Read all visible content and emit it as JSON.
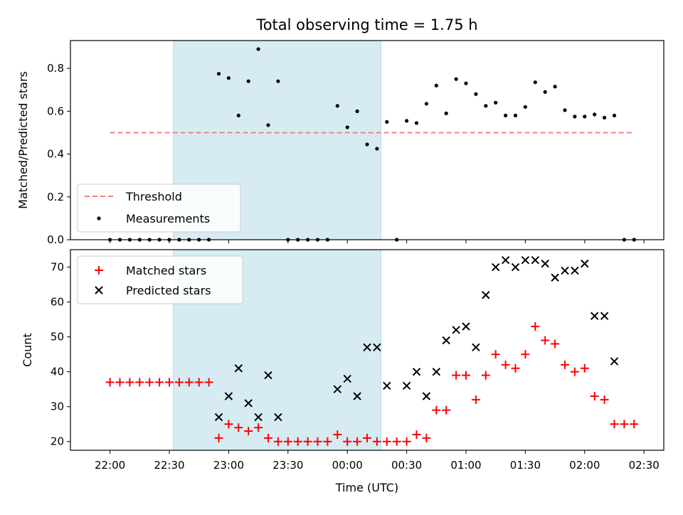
{
  "chart_data": {
    "title": "Total observing time = 1.75 h",
    "xlabel": "Time (UTC)",
    "x_tick_labels": [
      "22:00",
      "22:30",
      "23:00",
      "23:30",
      "00:00",
      "00:30",
      "01:00",
      "01:30",
      "02:00",
      "02:30"
    ],
    "x_range_minutes": [
      -20,
      280
    ],
    "shaded_region_minutes": [
      32,
      137
    ],
    "shade_color": "#add8e6",
    "top": {
      "type": "scatter",
      "ylabel": "Matched/Predicted stars",
      "ylim": [
        0,
        0.93
      ],
      "yticks": [
        "0.0",
        "0.2",
        "0.4",
        "0.6",
        "0.8"
      ],
      "threshold": {
        "name": "Threshold",
        "value": 0.5,
        "x_range_minutes": [
          0,
          265
        ],
        "color": "#f08080"
      },
      "measurements": {
        "name": "Measurements",
        "color": "#000000",
        "points": [
          [
            0,
            0
          ],
          [
            5,
            0
          ],
          [
            10,
            0
          ],
          [
            15,
            0
          ],
          [
            20,
            0
          ],
          [
            25,
            0
          ],
          [
            30,
            0
          ],
          [
            35,
            0
          ],
          [
            40,
            0
          ],
          [
            45,
            0
          ],
          [
            50,
            0
          ],
          [
            55,
            0.775
          ],
          [
            60,
            0.755
          ],
          [
            65,
            0.58
          ],
          [
            70,
            0.74
          ],
          [
            75,
            0.89
          ],
          [
            80,
            0.535
          ],
          [
            85,
            0.74
          ],
          [
            90,
            0
          ],
          [
            95,
            0
          ],
          [
            100,
            0
          ],
          [
            105,
            0
          ],
          [
            110,
            0
          ],
          [
            115,
            0.625
          ],
          [
            120,
            0.525
          ],
          [
            125,
            0.6
          ],
          [
            130,
            0.445
          ],
          [
            135,
            0.425
          ],
          [
            140,
            0.55
          ],
          [
            145,
            0
          ],
          [
            150,
            0.555
          ],
          [
            155,
            0.545
          ],
          [
            160,
            0.635
          ],
          [
            165,
            0.72
          ],
          [
            170,
            0.59
          ],
          [
            175,
            0.75
          ],
          [
            180,
            0.73
          ],
          [
            185,
            0.68
          ],
          [
            190,
            0.625
          ],
          [
            195,
            0.64
          ],
          [
            200,
            0.58
          ],
          [
            205,
            0.58
          ],
          [
            210,
            0.62
          ],
          [
            215,
            0.735
          ],
          [
            220,
            0.69
          ],
          [
            225,
            0.715
          ],
          [
            230,
            0.605
          ],
          [
            235,
            0.575
          ],
          [
            240,
            0.575
          ],
          [
            245,
            0.585
          ],
          [
            250,
            0.57
          ],
          [
            255,
            0.58
          ],
          [
            260,
            0
          ],
          [
            265,
            0
          ]
        ]
      }
    },
    "bottom": {
      "type": "scatter",
      "ylabel": "Count",
      "ylim": [
        17.5,
        75
      ],
      "yticks": [
        "20",
        "30",
        "40",
        "50",
        "60",
        "70"
      ],
      "series": [
        {
          "name": "Matched stars",
          "marker": "plus",
          "color": "#ff0000",
          "points": [
            [
              0,
              37
            ],
            [
              5,
              37
            ],
            [
              10,
              37
            ],
            [
              15,
              37
            ],
            [
              20,
              37
            ],
            [
              25,
              37
            ],
            [
              30,
              37
            ],
            [
              35,
              37
            ],
            [
              40,
              37
            ],
            [
              45,
              37
            ],
            [
              50,
              37
            ],
            [
              55,
              21
            ],
            [
              60,
              25
            ],
            [
              65,
              24
            ],
            [
              70,
              23
            ],
            [
              75,
              24
            ],
            [
              80,
              21
            ],
            [
              85,
              20
            ],
            [
              90,
              20
            ],
            [
              95,
              20
            ],
            [
              100,
              20
            ],
            [
              105,
              20
            ],
            [
              110,
              20
            ],
            [
              115,
              22
            ],
            [
              120,
              20
            ],
            [
              125,
              20
            ],
            [
              130,
              21
            ],
            [
              135,
              20
            ],
            [
              140,
              20
            ],
            [
              145,
              20
            ],
            [
              150,
              20
            ],
            [
              155,
              22
            ],
            [
              160,
              21
            ],
            [
              165,
              29
            ],
            [
              170,
              29
            ],
            [
              175,
              39
            ],
            [
              180,
              39
            ],
            [
              185,
              32
            ],
            [
              190,
              39
            ],
            [
              195,
              45
            ],
            [
              200,
              42
            ],
            [
              205,
              41
            ],
            [
              210,
              45
            ],
            [
              215,
              53
            ],
            [
              220,
              49
            ],
            [
              225,
              48
            ],
            [
              230,
              42
            ],
            [
              235,
              40
            ],
            [
              240,
              41
            ],
            [
              245,
              33
            ],
            [
              250,
              32
            ],
            [
              255,
              25
            ],
            [
              260,
              25
            ],
            [
              265,
              25
            ]
          ]
        },
        {
          "name": "Predicted stars",
          "marker": "x",
          "color": "#000000",
          "points": [
            [
              55,
              27
            ],
            [
              60,
              33
            ],
            [
              65,
              41
            ],
            [
              70,
              31
            ],
            [
              75,
              27
            ],
            [
              80,
              39
            ],
            [
              85,
              27
            ],
            [
              115,
              35
            ],
            [
              120,
              38
            ],
            [
              125,
              33
            ],
            [
              130,
              47
            ],
            [
              135,
              47
            ],
            [
              140,
              36
            ],
            [
              150,
              36
            ],
            [
              155,
              40
            ],
            [
              160,
              33
            ],
            [
              165,
              40
            ],
            [
              170,
              49
            ],
            [
              175,
              52
            ],
            [
              180,
              53
            ],
            [
              185,
              47
            ],
            [
              190,
              62
            ],
            [
              195,
              70
            ],
            [
              200,
              72
            ],
            [
              205,
              70
            ],
            [
              210,
              72
            ],
            [
              215,
              72
            ],
            [
              220,
              71
            ],
            [
              225,
              67
            ],
            [
              230,
              69
            ],
            [
              235,
              69
            ],
            [
              240,
              71
            ],
            [
              245,
              56
            ],
            [
              250,
              56
            ],
            [
              255,
              43
            ]
          ]
        }
      ]
    }
  }
}
